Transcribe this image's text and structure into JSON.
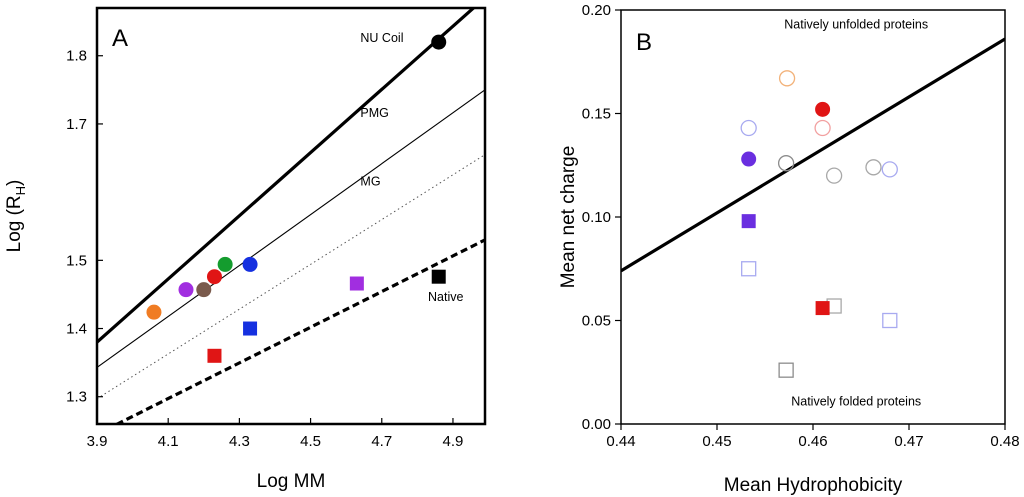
{
  "chart_data": [
    {
      "type": "scatter",
      "panel_label": "A",
      "xlabel": "Log MM",
      "ylabel_main": "Log (R",
      "ylabel_sub": "H",
      "ylabel_close": ")",
      "xlim": [
        3.9,
        4.99
      ],
      "ylim": [
        1.26,
        1.87
      ],
      "x_ticks": [
        3.9,
        4.1,
        4.3,
        4.5,
        4.7,
        4.9
      ],
      "x_tick_labels": [
        "3.9",
        "4.1",
        "4.3",
        "4.5",
        "4.7",
        "4.9"
      ],
      "y_ticks": [
        1.3,
        1.4,
        1.5,
        1.7,
        1.8
      ],
      "y_tick_labels": [
        "1.3",
        "1.4",
        "1.5",
        "1.7",
        "1.8"
      ],
      "lines": [
        {
          "name": "NU Coil",
          "x": [
            3.9,
            4.99
          ],
          "y": [
            1.38,
            1.885
          ],
          "style": "thick"
        },
        {
          "name": "PMG",
          "x": [
            3.9,
            4.99
          ],
          "y": [
            1.343,
            1.75
          ],
          "style": "thin"
        },
        {
          "name": "MG",
          "x": [
            3.9,
            4.99
          ],
          "y": [
            1.297,
            1.655
          ],
          "style": "dotted"
        },
        {
          "name": "Native",
          "x": [
            3.9,
            4.99
          ],
          "y": [
            1.245,
            1.53
          ],
          "style": "dashed"
        }
      ],
      "annotations": [
        {
          "text": "NU Coil",
          "x": 4.64,
          "y": 1.82
        },
        {
          "text": "PMG",
          "x": 4.64,
          "y": 1.71
        },
        {
          "text": "MG",
          "x": 4.64,
          "y": 1.61
        },
        {
          "text": "Native",
          "x": 4.83,
          "y": 1.44
        }
      ],
      "points": [
        {
          "x": 4.86,
          "y": 1.82,
          "shape": "circle",
          "color": "#000000"
        },
        {
          "x": 4.06,
          "y": 1.424,
          "shape": "circle",
          "color": "#f07c23"
        },
        {
          "x": 4.15,
          "y": 1.457,
          "shape": "circle",
          "color": "#a12ee0"
        },
        {
          "x": 4.2,
          "y": 1.457,
          "shape": "circle",
          "color": "#7a5a4c"
        },
        {
          "x": 4.23,
          "y": 1.476,
          "shape": "circle",
          "color": "#e01515"
        },
        {
          "x": 4.26,
          "y": 1.494,
          "shape": "circle",
          "color": "#149c2e"
        },
        {
          "x": 4.33,
          "y": 1.494,
          "shape": "circle",
          "color": "#1530e0"
        },
        {
          "x": 4.23,
          "y": 1.36,
          "shape": "square",
          "color": "#e01515"
        },
        {
          "x": 4.33,
          "y": 1.4,
          "shape": "square",
          "color": "#1530e0"
        },
        {
          "x": 4.63,
          "y": 1.466,
          "shape": "square",
          "color": "#a12ee0"
        },
        {
          "x": 4.86,
          "y": 1.476,
          "shape": "square",
          "color": "#000000"
        }
      ]
    },
    {
      "type": "scatter",
      "panel_label": "B",
      "xlabel": "Mean Hydrophobicity",
      "ylabel": "Mean net charge",
      "xlim": [
        0.44,
        0.48
      ],
      "ylim": [
        0.0,
        0.2
      ],
      "x_ticks": [
        0.44,
        0.45,
        0.46,
        0.47,
        0.48
      ],
      "x_tick_labels": [
        "0.44",
        "0.45",
        "0.46",
        "0.47",
        "0.48"
      ],
      "y_ticks": [
        0.0,
        0.05,
        0.1,
        0.15,
        0.2
      ],
      "y_tick_labels": [
        "0.00",
        "0.05",
        "0.10",
        "0.15",
        "0.20"
      ],
      "lines": [
        {
          "name": "boundary",
          "x": [
            0.44,
            0.48
          ],
          "y": [
            0.074,
            0.186
          ],
          "style": "thick"
        }
      ],
      "annotations": [
        {
          "text": "Natively unfolded proteins",
          "x": 0.4645,
          "y": 0.191
        },
        {
          "text": "Natively folded proteins",
          "x": 0.4645,
          "y": 0.009
        }
      ],
      "points": [
        {
          "x": 0.4573,
          "y": 0.167,
          "shape": "circle",
          "filled": false,
          "color": "#f2b27a"
        },
        {
          "x": 0.4533,
          "y": 0.143,
          "shape": "circle",
          "filled": false,
          "color": "#a8aaf0"
        },
        {
          "x": 0.4533,
          "y": 0.128,
          "shape": "circle",
          "filled": true,
          "color": "#6a2ee0"
        },
        {
          "x": 0.461,
          "y": 0.152,
          "shape": "circle",
          "filled": true,
          "color": "#e01515"
        },
        {
          "x": 0.461,
          "y": 0.143,
          "shape": "circle",
          "filled": false,
          "color": "#f2a0a0"
        },
        {
          "x": 0.4572,
          "y": 0.126,
          "shape": "circle",
          "filled": false,
          "color": "#8c8c8c"
        },
        {
          "x": 0.4622,
          "y": 0.12,
          "shape": "circle",
          "filled": false,
          "color": "#a8a8a8"
        },
        {
          "x": 0.4663,
          "y": 0.124,
          "shape": "circle",
          "filled": false,
          "color": "#a8a8a8"
        },
        {
          "x": 0.468,
          "y": 0.123,
          "shape": "circle",
          "filled": false,
          "color": "#a8aaf0"
        },
        {
          "x": 0.4533,
          "y": 0.098,
          "shape": "square",
          "filled": true,
          "color": "#6a2ee0"
        },
        {
          "x": 0.4533,
          "y": 0.075,
          "shape": "square",
          "filled": false,
          "color": "#a8aaf0"
        },
        {
          "x": 0.4622,
          "y": 0.057,
          "shape": "square",
          "filled": false,
          "color": "#a8a8a8"
        },
        {
          "x": 0.461,
          "y": 0.056,
          "shape": "square",
          "filled": true,
          "color": "#e01515"
        },
        {
          "x": 0.468,
          "y": 0.05,
          "shape": "square",
          "filled": false,
          "color": "#a8aaf0"
        },
        {
          "x": 0.4572,
          "y": 0.026,
          "shape": "square",
          "filled": false,
          "color": "#8c8c8c"
        }
      ]
    }
  ]
}
